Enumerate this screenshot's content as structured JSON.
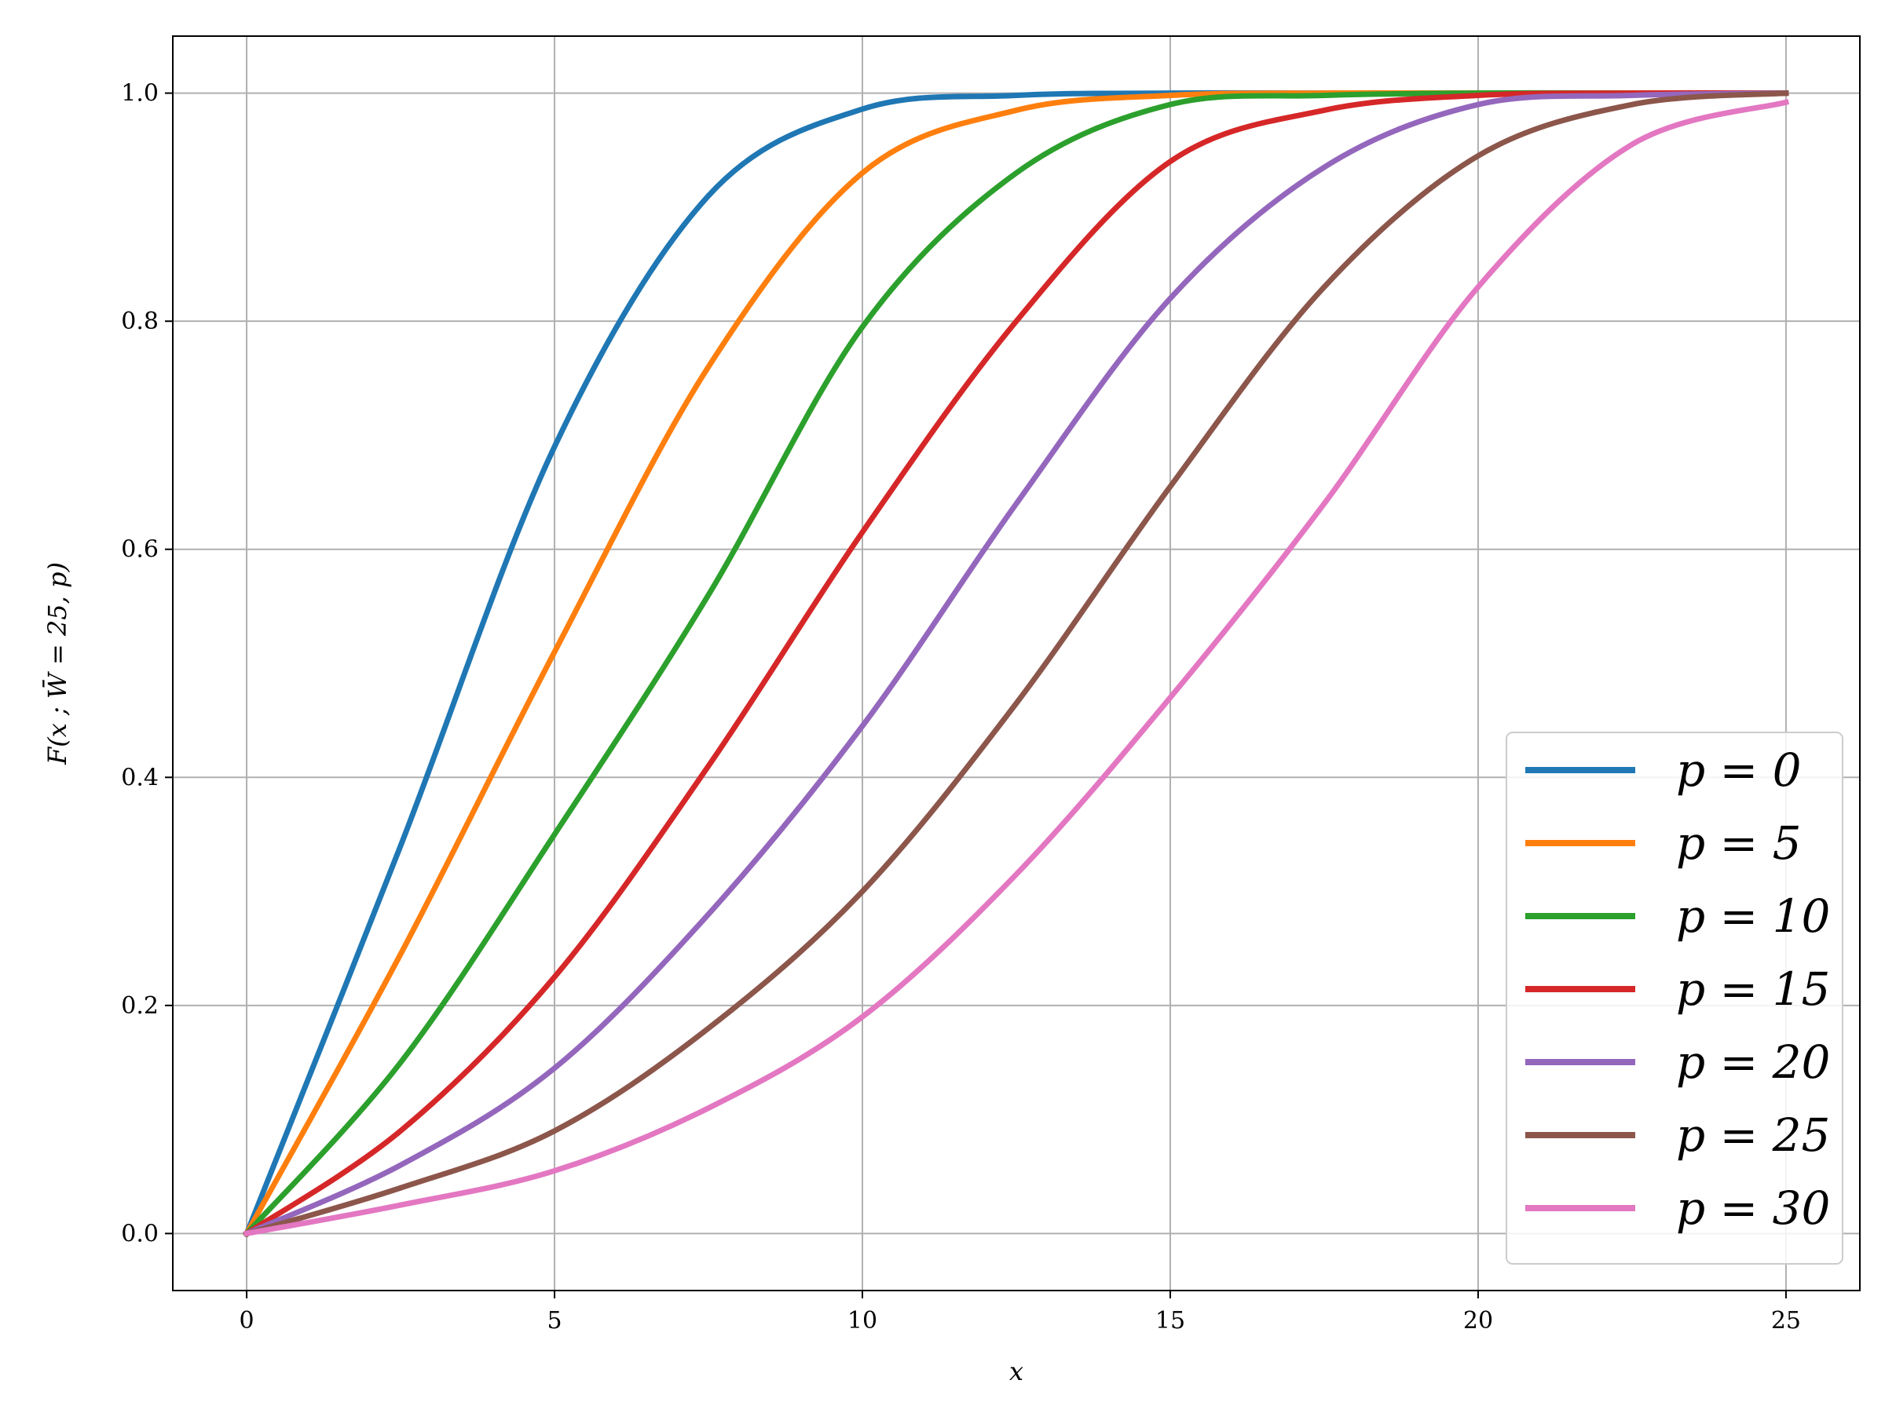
{
  "chart_data": {
    "type": "line",
    "title": "",
    "xlabel": "x",
    "ylabel": "F(x ; W̄ = 25, p)",
    "xlim": [
      -1.2,
      26.2
    ],
    "ylim": [
      -0.05,
      1.05
    ],
    "xticks": [
      0,
      5,
      10,
      15,
      20,
      25
    ],
    "yticks": [
      0.0,
      0.2,
      0.4,
      0.6,
      0.8,
      1.0
    ],
    "xtick_labels": [
      "0",
      "5",
      "10",
      "15",
      "20",
      "25"
    ],
    "ytick_labels": [
      "0.0",
      "0.2",
      "0.4",
      "0.6",
      "0.8",
      "1.0"
    ],
    "grid": true,
    "legend_position": "bottom-right",
    "x": [
      0,
      2.5,
      5,
      7.5,
      10,
      12.5,
      15,
      17.5,
      20,
      22.5,
      25
    ],
    "series": [
      {
        "name": "p = 0",
        "color": "#1f77b4",
        "values": [
          0,
          0.34,
          0.69,
          0.91,
          0.986,
          0.998,
          1.0,
          1.0,
          1.0,
          1.0,
          1.0
        ]
      },
      {
        "name": "p = 5",
        "color": "#ff7f0e",
        "values": [
          0,
          0.245,
          0.51,
          0.76,
          0.93,
          0.985,
          0.998,
          1.0,
          1.0,
          1.0,
          1.0
        ]
      },
      {
        "name": "p = 10",
        "color": "#2ca02c",
        "values": [
          0,
          0.15,
          0.35,
          0.56,
          0.795,
          0.93,
          0.99,
          0.998,
          1.0,
          1.0,
          1.0
        ]
      },
      {
        "name": "p = 15",
        "color": "#d62728",
        "values": [
          0,
          0.09,
          0.225,
          0.41,
          0.615,
          0.8,
          0.94,
          0.985,
          0.998,
          1.0,
          1.0
        ]
      },
      {
        "name": "p = 20",
        "color": "#9467bd",
        "values": [
          0,
          0.06,
          0.145,
          0.28,
          0.445,
          0.64,
          0.82,
          0.935,
          0.99,
          0.998,
          1.0
        ]
      },
      {
        "name": "p = 25",
        "color": "#8c564b",
        "values": [
          0,
          0.04,
          0.09,
          0.18,
          0.3,
          0.465,
          0.655,
          0.83,
          0.945,
          0.99,
          1.0
        ]
      },
      {
        "name": "p = 30",
        "color": "#e377c2",
        "values": [
          0,
          0.025,
          0.055,
          0.11,
          0.19,
          0.315,
          0.47,
          0.64,
          0.83,
          0.955,
          0.992
        ]
      }
    ]
  }
}
